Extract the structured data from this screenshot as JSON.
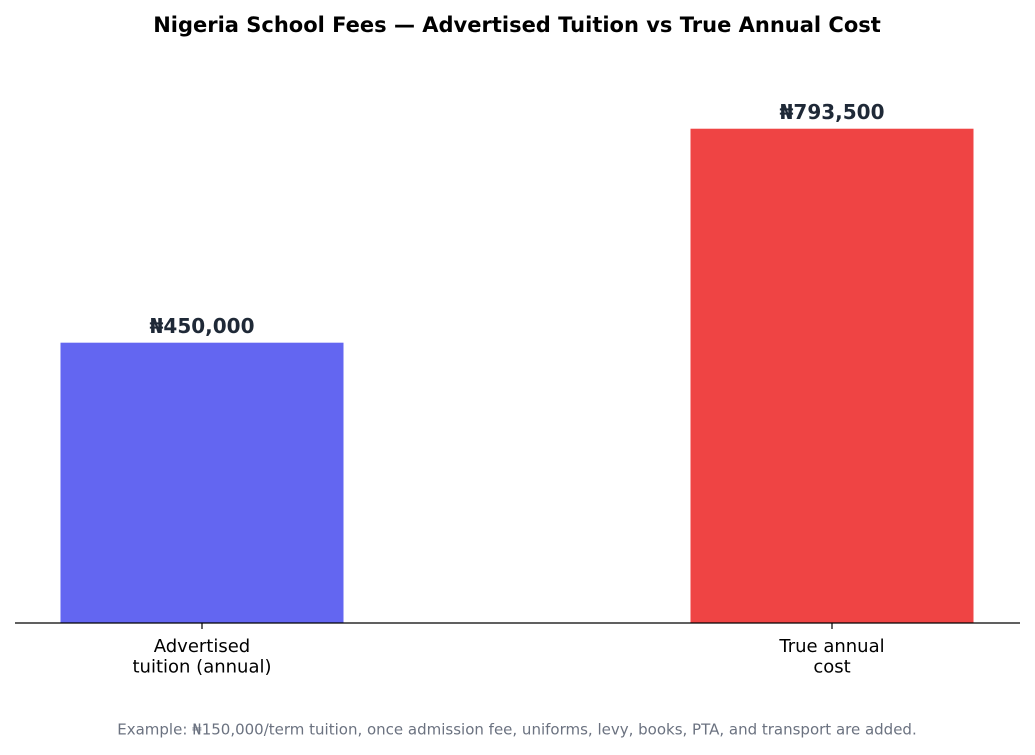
{
  "chart_data": {
    "type": "bar",
    "title": "Nigeria School Fees — Advertised Tuition vs True Annual Cost",
    "categories": [
      "Advertised\ntuition (annual)",
      "True annual\ncost"
    ],
    "values": [
      450000,
      793500
    ],
    "value_labels": [
      "₦450,000",
      "₦793,500"
    ],
    "colors": [
      "#6366f1",
      "#ef4444"
    ],
    "ylim": [
      0,
      833175
    ],
    "caption": "Example: ₦150,000/term tuition, once admission fee, uniforms, levy, books, PTA, and transport are added."
  }
}
